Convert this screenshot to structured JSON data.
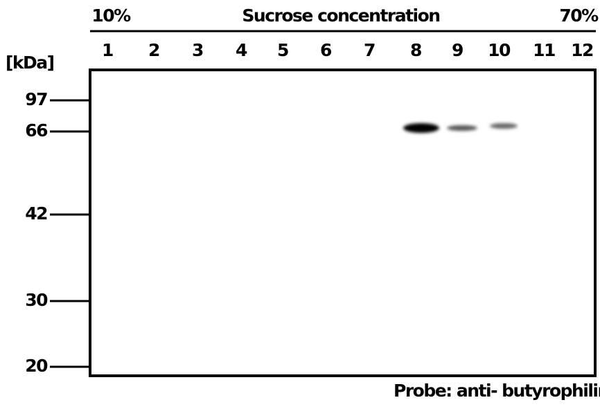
{
  "header": {
    "left_label": "10%",
    "title": "Sucrose concentration",
    "right_label": "70%"
  },
  "lanes": [
    1,
    2,
    3,
    4,
    5,
    6,
    7,
    8,
    9,
    10,
    11,
    12
  ],
  "unit_label": "[kDa]",
  "markers": [
    97,
    66,
    42,
    30,
    20
  ],
  "footer": {
    "probe": "Probe: anti- butyrophilin"
  }
}
